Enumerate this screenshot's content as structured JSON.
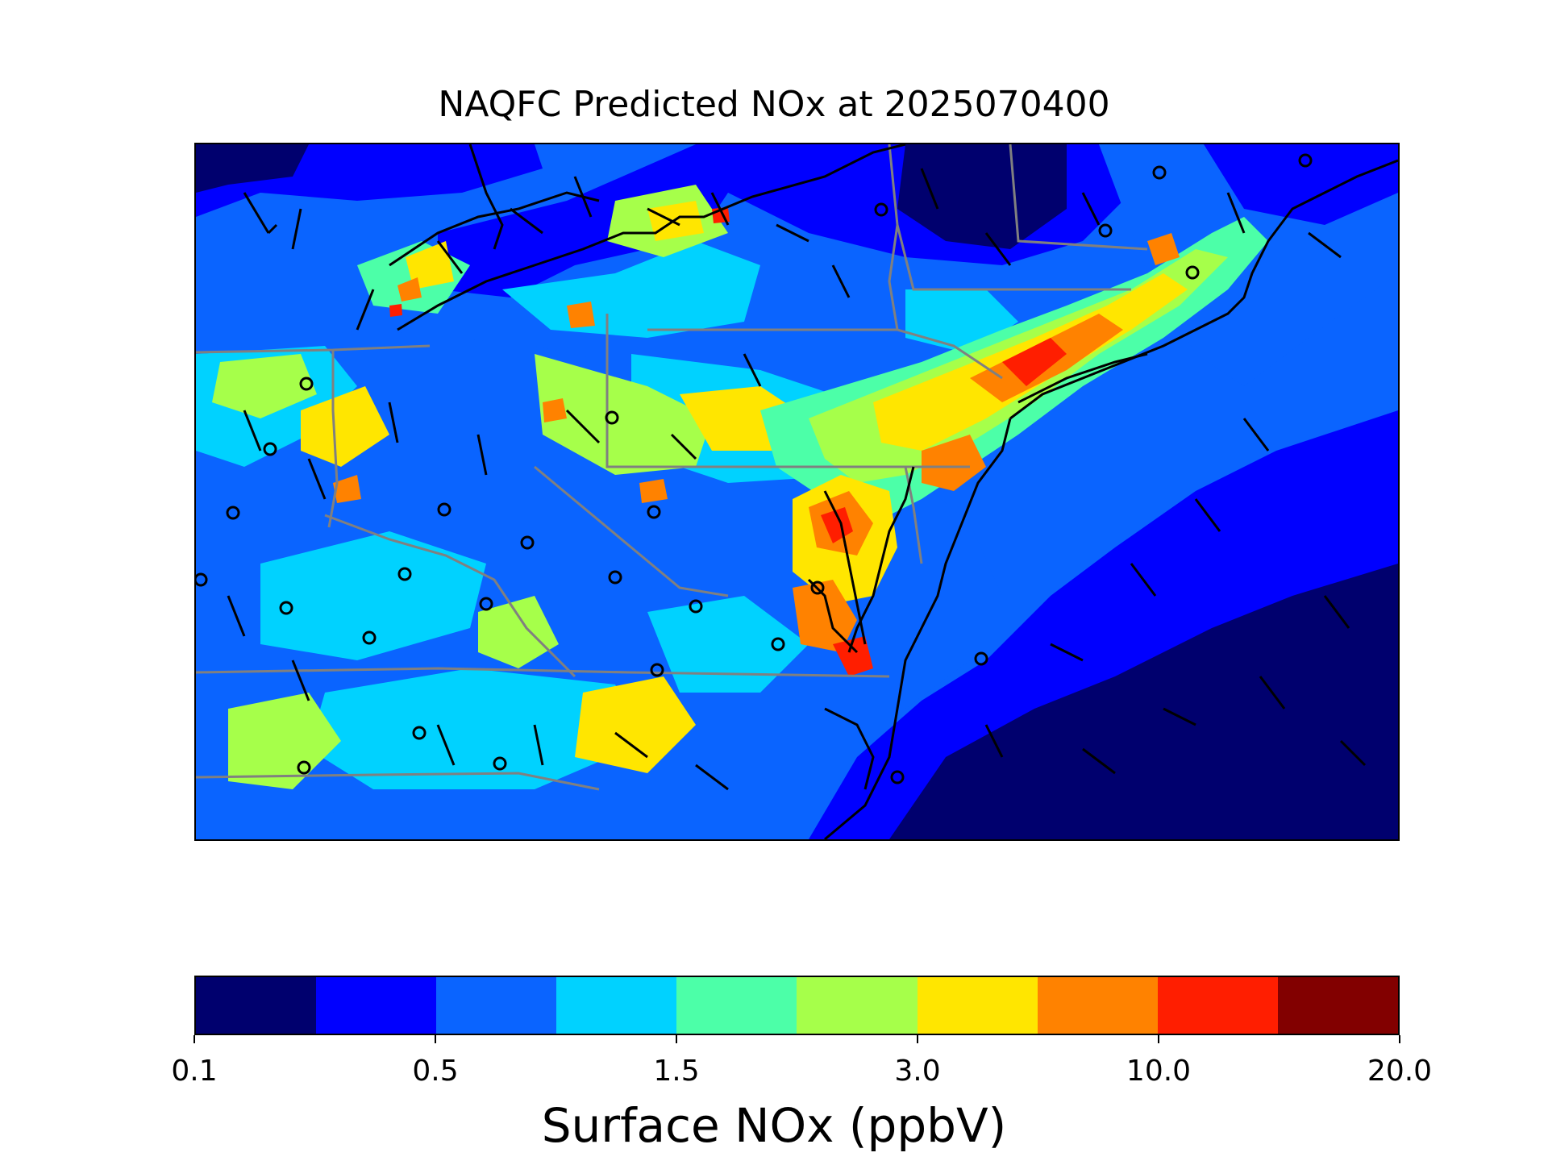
{
  "title": "NAQFC Predicted NOx at 2025070400",
  "colorbar": {
    "label": "Surface NOx (ppbV)",
    "ticks": [
      {
        "label": "0.1",
        "index": 0
      },
      {
        "label": "0.5",
        "index": 2
      },
      {
        "label": "1.5",
        "index": 4
      },
      {
        "label": "3.0",
        "index": 6
      },
      {
        "label": "10.0",
        "index": 8
      },
      {
        "label": "20.0",
        "index": 10
      }
    ],
    "colors": [
      "#00006e",
      "#0000ff",
      "#0a64ff",
      "#00d2ff",
      "#4cffa8",
      "#a6ff4a",
      "#ffe600",
      "#ff8200",
      "#ff1e00",
      "#820000"
    ]
  },
  "map": {
    "background_color": "#0a5cff",
    "coast_color": "#000000",
    "state_border_color": "#808080",
    "station_marker": "open-circle",
    "wind_barb_color": "#000000"
  }
}
